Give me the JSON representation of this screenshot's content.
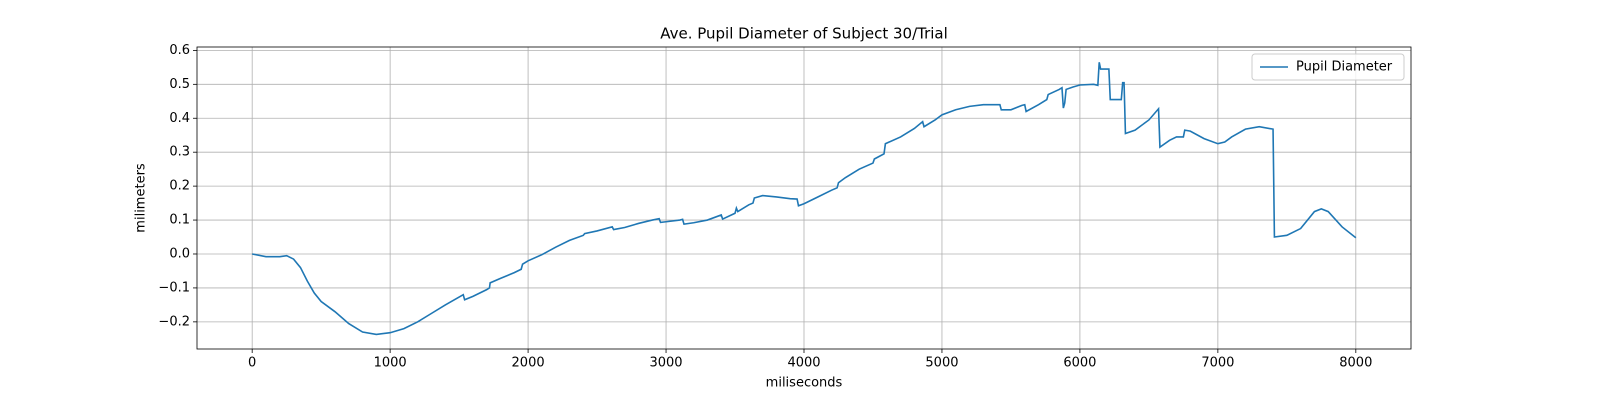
{
  "chart_data": {
    "type": "line",
    "title": "Ave. Pupil Diameter of Subject 30/Trial",
    "xlabel": "miliseconds",
    "ylabel": "milimeters",
    "x": [
      0,
      100,
      200,
      250,
      300,
      350,
      400,
      450,
      500,
      600,
      700,
      800,
      900,
      1000,
      1100,
      1200,
      1300,
      1400,
      1500,
      1530,
      1540,
      1600,
      1700,
      1720,
      1725,
      1800,
      1900,
      1950,
      1960,
      2000,
      2100,
      2200,
      2300,
      2400,
      2410,
      2500,
      2610,
      2620,
      2700,
      2800,
      2900,
      2950,
      2960,
      3000,
      3100,
      3120,
      3130,
      3200,
      3300,
      3400,
      3410,
      3500,
      3510,
      3520,
      3600,
      3630,
      3640,
      3700,
      3800,
      3900,
      3950,
      3960,
      4000,
      4100,
      4200,
      4240,
      4250,
      4300,
      4400,
      4500,
      4510,
      4580,
      4590,
      4700,
      4800,
      4860,
      4870,
      4950,
      5000,
      5100,
      5200,
      5300,
      5420,
      5430,
      5500,
      5580,
      5600,
      5610,
      5700,
      5760,
      5770,
      5850,
      5870,
      5880,
      5890,
      5900,
      5950,
      6000,
      6100,
      6130,
      6140,
      6150,
      6210,
      6220,
      6300,
      6310,
      6320,
      6330,
      6400,
      6500,
      6570,
      6580,
      6650,
      6700,
      6750,
      6760,
      6800,
      6900,
      7000,
      7050,
      7100,
      7200,
      7300,
      7400,
      7410,
      7500,
      7600,
      7700,
      7750,
      7800,
      7900,
      8000
    ],
    "series": [
      {
        "name": "Pupil Diameter",
        "color": "#1f77b4",
        "values": [
          0.0,
          -0.008,
          -0.008,
          -0.005,
          -0.015,
          -0.04,
          -0.08,
          -0.115,
          -0.14,
          -0.17,
          -0.205,
          -0.23,
          -0.237,
          -0.232,
          -0.22,
          -0.2,
          -0.175,
          -0.15,
          -0.127,
          -0.12,
          -0.135,
          -0.125,
          -0.105,
          -0.1,
          -0.085,
          -0.072,
          -0.055,
          -0.045,
          -0.03,
          -0.02,
          -0.002,
          0.02,
          0.04,
          0.055,
          0.06,
          0.068,
          0.08,
          0.072,
          0.078,
          0.09,
          0.1,
          0.104,
          0.093,
          0.095,
          0.1,
          0.102,
          0.088,
          0.092,
          0.1,
          0.115,
          0.103,
          0.12,
          0.135,
          0.125,
          0.145,
          0.15,
          0.165,
          0.172,
          0.168,
          0.163,
          0.162,
          0.142,
          0.148,
          0.168,
          0.188,
          0.195,
          0.21,
          0.225,
          0.25,
          0.268,
          0.28,
          0.295,
          0.325,
          0.345,
          0.37,
          0.39,
          0.375,
          0.395,
          0.41,
          0.425,
          0.435,
          0.44,
          0.44,
          0.425,
          0.425,
          0.438,
          0.44,
          0.42,
          0.44,
          0.455,
          0.47,
          0.485,
          0.49,
          0.43,
          0.445,
          0.485,
          0.492,
          0.498,
          0.5,
          0.497,
          0.565,
          0.545,
          0.545,
          0.455,
          0.455,
          0.505,
          0.505,
          0.355,
          0.365,
          0.395,
          0.428,
          0.315,
          0.335,
          0.345,
          0.345,
          0.365,
          0.362,
          0.34,
          0.325,
          0.33,
          0.345,
          0.368,
          0.375,
          0.368,
          0.05,
          0.055,
          0.075,
          0.125,
          0.133,
          0.125,
          0.08,
          0.048
        ]
      }
    ],
    "xlim": [
      -400,
      8400
    ],
    "xticks": [
      0,
      1000,
      2000,
      3000,
      4000,
      5000,
      6000,
      7000,
      8000
    ],
    "ylim": [
      -0.28,
      0.61
    ],
    "yticks": [
      {
        "value": -0.2,
        "label": "−0.2"
      },
      {
        "value": -0.1,
        "label": "−0.1"
      },
      {
        "value": 0.0,
        "label": "0.0"
      },
      0.1,
      0.2,
      0.3,
      0.4,
      0.5,
      0.6
    ],
    "grid": true,
    "legend": "upper right"
  }
}
